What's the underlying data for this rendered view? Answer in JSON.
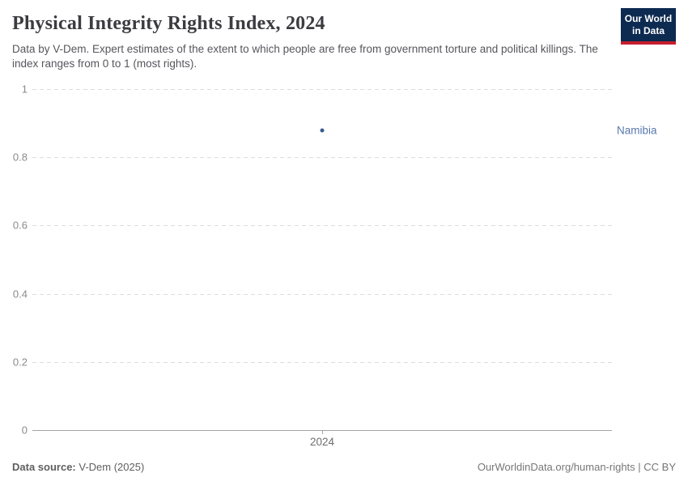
{
  "header": {
    "title": "Physical Integrity Rights Index, 2024",
    "subtitle": "Data by V-Dem. Expert estimates of the extent to which people are free from government torture and political killings. The index ranges from 0 to 1 (most rights).",
    "logo": {
      "line1": "Our World",
      "line2": "in Data",
      "bg_color": "#0d2a50",
      "stripe_color": "#c51e2e"
    }
  },
  "footer": {
    "source_label": "Data source:",
    "source_value": " V-Dem (2025)",
    "credit": "OurWorldinData.org/human-rights | CC BY"
  },
  "colors": {
    "point": "#3a5c91",
    "entity_label": "#5878ad",
    "gridline": "#dcdcdc",
    "axis": "#a3a3a3",
    "ytick_text": "#8b8b8b",
    "xtick_text": "#6d6d6d"
  },
  "chart_data": {
    "type": "scatter",
    "title": "Physical Integrity Rights Index, 2024",
    "xlabel": "",
    "ylabel": "",
    "x": [
      2024
    ],
    "xticks": [
      "2024"
    ],
    "yticks": [
      0,
      0.2,
      0.4,
      0.6,
      0.8,
      1
    ],
    "ylim": [
      0,
      1
    ],
    "grid": true,
    "legend_position": "entity label right of plot",
    "series": [
      {
        "name": "Namibia",
        "x": [
          2024
        ],
        "values": [
          0.88
        ],
        "color": "#3a5c91",
        "label_color": "#5878ad"
      }
    ]
  }
}
